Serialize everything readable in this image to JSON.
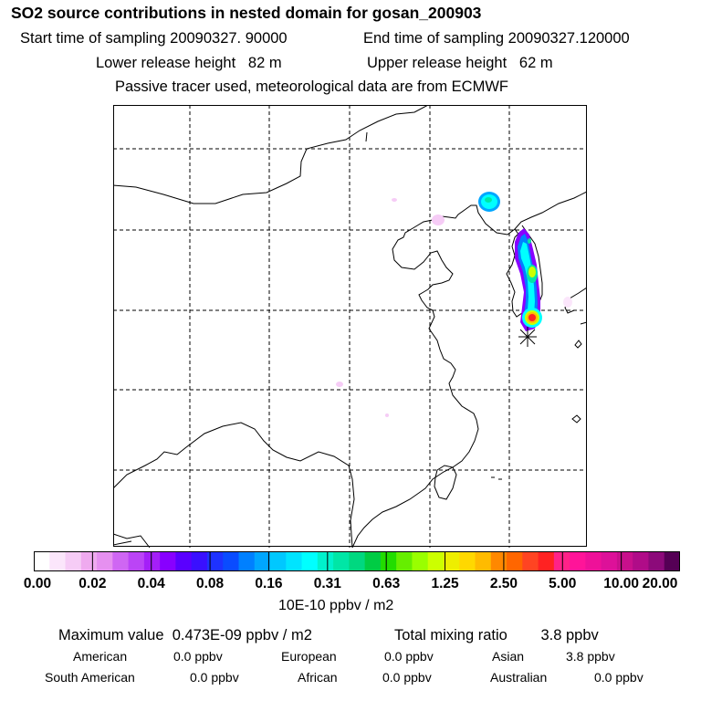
{
  "header": {
    "title": "SO2 source contributions in nested domain for gosan_200903",
    "start_time": "Start time of sampling 20090327. 90000",
    "end_time": "End time of sampling 20090327.120000",
    "lower_height": "Lower release height   82 m",
    "upper_height": "Upper release height   62 m",
    "info": "Passive tracer used, meteorological data are from ECMWF"
  },
  "map": {
    "features": [
      "grid",
      "coastline",
      "so2-plume",
      "receptor-marker"
    ],
    "grid_lon_lines": 5,
    "grid_lat_lines": 5
  },
  "colorbar": {
    "tick_labels": [
      "0.00",
      "0.02",
      "0.04",
      "0.08",
      "0.16",
      "0.31",
      "0.63",
      "1.25",
      "2.50",
      "5.00",
      "10.00",
      "20.00"
    ],
    "units": "10E-10 ppbv / m2",
    "colors": [
      "#ffffff",
      "#fbe6fb",
      "#f6ccf6",
      "#efaaef",
      "#e690f0",
      "#cf66f3",
      "#bb44f6",
      "#a41ff8",
      "#8800ff",
      "#5a00ff",
      "#3a10ff",
      "#1e32ff",
      "#0a4cff",
      "#0080ff",
      "#00a6ff",
      "#00c8ff",
      "#00e4ff",
      "#00ffff",
      "#00f2cc",
      "#00e6a6",
      "#00d880",
      "#00cc44",
      "#22dd00",
      "#66ee00",
      "#99ff00",
      "#ccff00",
      "#eeee00",
      "#ffd800",
      "#ffbb00",
      "#ff8800",
      "#ff6600",
      "#ff4422",
      "#ff2222",
      "#ff2288",
      "#ff1499",
      "#ee1199",
      "#dd1199",
      "#c8108c",
      "#b00c88",
      "#8c0a7a",
      "#550055"
    ]
  },
  "summary": {
    "max_value": "Maximum value  0.473E-09 ppbv / m2",
    "total_mixing": "Total mixing ratio        3.8 ppbv"
  },
  "regions": {
    "american_label": "American",
    "american_value": "0.0 ppbv",
    "european_label": "European",
    "european_value": "0.0 ppbv",
    "asian_label": "Asian",
    "asian_value": "3.8 ppbv",
    "south_american_label": "South American",
    "south_american_value": "0.0 ppbv",
    "african_label": "African",
    "african_value": "0.0 ppbv",
    "australian_label": "Australian",
    "australian_value": "0.0 ppbv"
  }
}
